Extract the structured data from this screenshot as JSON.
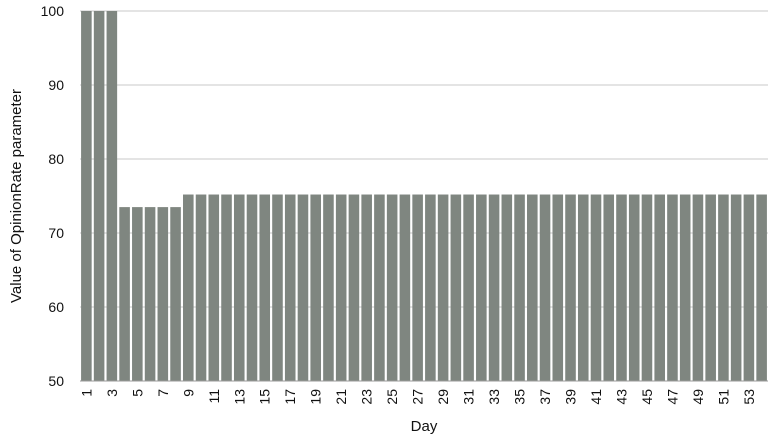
{
  "chart_data": {
    "type": "bar",
    "xlabel": "Day",
    "ylabel": "Value of OpinionRate parameter",
    "ylim": [
      50,
      100
    ],
    "yticks": [
      "50",
      "60",
      "70",
      "80",
      "90",
      "100"
    ],
    "grid": true,
    "bar_color": "#7f8680",
    "categories": [
      "1",
      "2",
      "3",
      "4",
      "5",
      "6",
      "7",
      "8",
      "9",
      "10",
      "11",
      "12",
      "13",
      "14",
      "15",
      "16",
      "17",
      "18",
      "19",
      "20",
      "21",
      "22",
      "23",
      "24",
      "25",
      "26",
      "27",
      "28",
      "29",
      "30",
      "31",
      "32",
      "33",
      "34",
      "35",
      "36",
      "37",
      "38",
      "39",
      "40",
      "41",
      "42",
      "43",
      "44",
      "45",
      "46",
      "47",
      "48",
      "49",
      "50",
      "51",
      "52",
      "53",
      "54"
    ],
    "visible_xticks": [
      "1",
      "3",
      "5",
      "7",
      "9",
      "11",
      "13",
      "15",
      "17",
      "19",
      "21",
      "23",
      "25",
      "27",
      "29",
      "31",
      "33",
      "35",
      "37",
      "39",
      "41",
      "43",
      "45",
      "47",
      "49",
      "51",
      "53"
    ],
    "values": [
      100,
      100,
      100,
      73.5,
      73.5,
      73.5,
      73.5,
      73.5,
      75.2,
      75.2,
      75.2,
      75.2,
      75.2,
      75.2,
      75.2,
      75.2,
      75.2,
      75.2,
      75.2,
      75.2,
      75.2,
      75.2,
      75.2,
      75.2,
      75.2,
      75.2,
      75.2,
      75.2,
      75.2,
      75.2,
      75.2,
      75.2,
      75.2,
      75.2,
      75.2,
      75.2,
      75.2,
      75.2,
      75.2,
      75.2,
      75.2,
      75.2,
      75.2,
      75.2,
      75.2,
      75.2,
      75.2,
      75.2,
      75.2,
      75.2,
      75.2,
      75.2,
      75.2,
      75.2
    ]
  }
}
